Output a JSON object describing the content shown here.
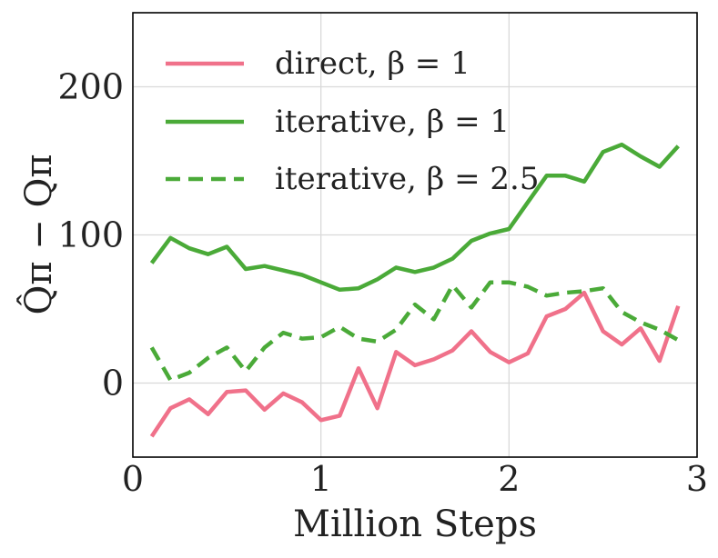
{
  "chart_data": {
    "type": "line",
    "xlabel": "Million Steps",
    "ylabel": "Q̂π − Qπ",
    "xlim": [
      0,
      3
    ],
    "ylim": [
      -50,
      250
    ],
    "xticks": [
      0,
      1,
      2,
      3
    ],
    "xtick_labels": [
      "0",
      "1",
      "2",
      "3"
    ],
    "yticks": [
      0,
      100,
      200
    ],
    "ytick_labels": [
      "0",
      "100",
      "200"
    ],
    "grid": true,
    "legend_position": "top-left",
    "series": [
      {
        "name": "direct, β = 1",
        "color": "#f0718a",
        "dash": "solid",
        "x": [
          0.1,
          0.2,
          0.3,
          0.4,
          0.5,
          0.6,
          0.7,
          0.8,
          0.9,
          1.0,
          1.1,
          1.2,
          1.3,
          1.4,
          1.5,
          1.6,
          1.7,
          1.8,
          1.9,
          2.0,
          2.1,
          2.2,
          2.3,
          2.4,
          2.5,
          2.6,
          2.7,
          2.8,
          2.9
        ],
        "y": [
          -36,
          -17,
          -11,
          -21,
          -6,
          -5,
          -18,
          -7,
          -13,
          -25,
          -22,
          10,
          -17,
          21,
          12,
          16,
          22,
          35,
          21,
          14,
          20,
          45,
          50,
          61,
          35,
          26,
          37,
          15,
          52
        ]
      },
      {
        "name": "iterative, β = 1",
        "color": "#4aaa38",
        "dash": "solid",
        "x": [
          0.1,
          0.2,
          0.3,
          0.4,
          0.5,
          0.6,
          0.7,
          0.8,
          0.9,
          1.0,
          1.1,
          1.2,
          1.3,
          1.4,
          1.5,
          1.6,
          1.7,
          1.8,
          1.9,
          2.0,
          2.1,
          2.2,
          2.3,
          2.4,
          2.5,
          2.6,
          2.7,
          2.8,
          2.9
        ],
        "y": [
          81,
          98,
          91,
          87,
          92,
          77,
          79,
          76,
          73,
          68,
          63,
          64,
          70,
          78,
          75,
          78,
          84,
          96,
          101,
          104,
          122,
          140,
          140,
          136,
          156,
          161,
          153,
          146,
          160
        ]
      },
      {
        "name": "iterative, β = 2.5",
        "color": "#4aaa38",
        "dash": "dashed",
        "x": [
          0.1,
          0.2,
          0.3,
          0.4,
          0.5,
          0.6,
          0.7,
          0.8,
          0.9,
          1.0,
          1.1,
          1.2,
          1.3,
          1.4,
          1.5,
          1.6,
          1.7,
          1.8,
          1.9,
          2.0,
          2.1,
          2.2,
          2.3,
          2.4,
          2.5,
          2.6,
          2.7,
          2.8,
          2.9
        ],
        "y": [
          24,
          2,
          7,
          17,
          24,
          8,
          24,
          34,
          30,
          31,
          38,
          30,
          28,
          36,
          53,
          43,
          66,
          51,
          68,
          68,
          65,
          59,
          61,
          62,
          64,
          48,
          41,
          36,
          29
        ]
      }
    ]
  }
}
